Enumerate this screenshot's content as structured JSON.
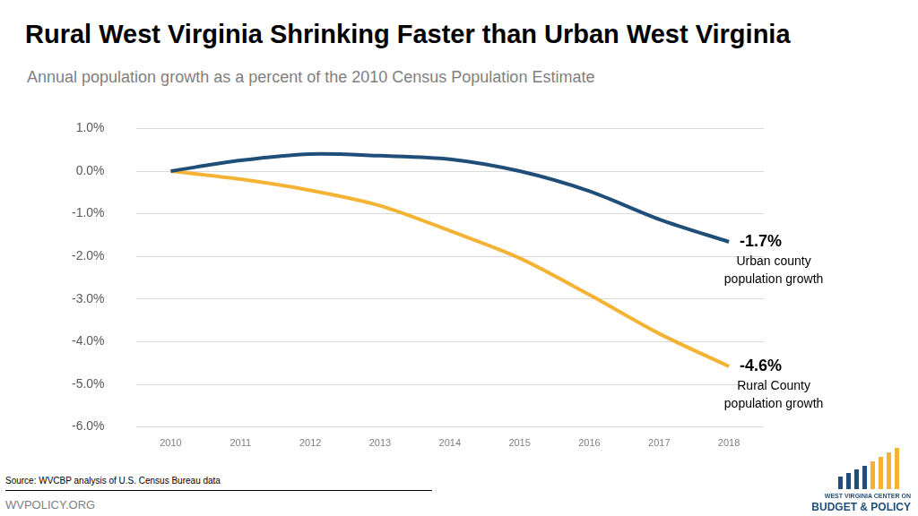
{
  "chart_data": {
    "type": "line",
    "title": "Rural West Virginia Shrinking Faster than Urban West Virginia",
    "subtitle": "Annual population growth as a percent of the 2010 Census Population Estimate",
    "categories": [
      "2010",
      "2011",
      "2012",
      "2013",
      "2014",
      "2015",
      "2016",
      "2017",
      "2018"
    ],
    "series": [
      {
        "name": "Urban county population growth",
        "color": "#1f4e79",
        "values": [
          0,
          0.25,
          0.4,
          0.36,
          0.28,
          0,
          -0.47,
          -1.13,
          -1.66
        ],
        "end_label": "-1.7%"
      },
      {
        "name": "Rural County population growth",
        "color": "#f5b335",
        "values": [
          0,
          -0.19,
          -0.45,
          -0.81,
          -1.4,
          -2.04,
          -2.9,
          -3.81,
          -4.58
        ],
        "end_label": "-4.6%"
      }
    ],
    "ylim": [
      -6,
      1
    ],
    "yticks": [
      {
        "value": 1,
        "label": "1.0%"
      },
      {
        "value": 0,
        "label": "0.0%"
      },
      {
        "value": -1,
        "label": "-1.0%"
      },
      {
        "value": -2,
        "label": "-2.0%"
      },
      {
        "value": -3,
        "label": "-3.0%"
      },
      {
        "value": -4,
        "label": "-4.0%"
      },
      {
        "value": -5,
        "label": "-5.0%"
      },
      {
        "value": -6,
        "label": "-6.0%"
      }
    ],
    "grid": true,
    "source": "Source: WVCBP analysis of U.S. Census Bureau data",
    "footer": "WVPOLICY.ORG",
    "logo": [
      "WEST VIRGINIA CENTER ON",
      "BUDGET & POLICY"
    ]
  }
}
